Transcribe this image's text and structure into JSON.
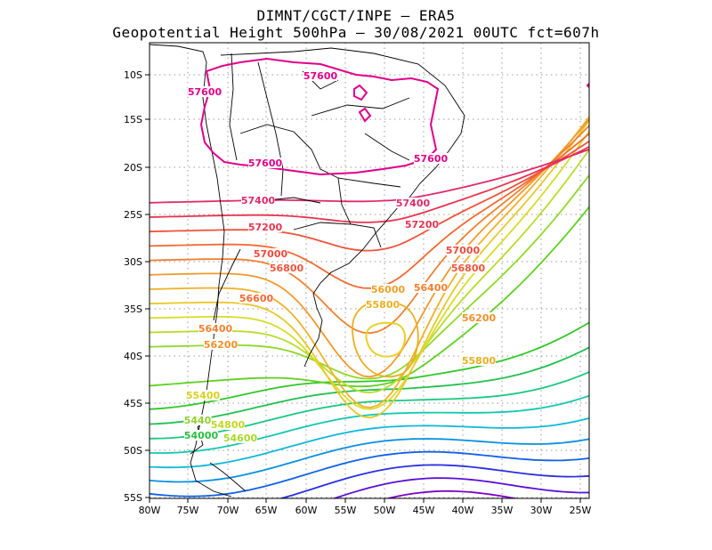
{
  "header": {
    "title_line1": "DIMNT/CGCT/INPE –  ERA5",
    "title_line2": "Geopotential Height 500hPa –  30/08/2021 00UTC fct=607h"
  },
  "axes": {
    "lat_ticks": [
      "10S",
      "15S",
      "20S",
      "25S",
      "30S",
      "35S",
      "40S",
      "45S",
      "50S",
      "55S"
    ],
    "lon_ticks": [
      "80W",
      "75W",
      "70W",
      "65W",
      "60W",
      "55W",
      "50W",
      "45W",
      "40W",
      "35W",
      "30W",
      "25W"
    ]
  },
  "contour_labels": [
    {
      "text": "57600",
      "color": "#e0008a"
    },
    {
      "text": "57600",
      "color": "#e0008a"
    },
    {
      "text": "57600",
      "color": "#e0008a"
    },
    {
      "text": "57600",
      "color": "#e0008a"
    },
    {
      "text": "57400",
      "color": "#e02a6a"
    },
    {
      "text": "57400",
      "color": "#e02a6a"
    },
    {
      "text": "57200",
      "color": "#e8344e"
    },
    {
      "text": "57200",
      "color": "#e8344e"
    },
    {
      "text": "57000",
      "color": "#ee4a3c"
    },
    {
      "text": "57000",
      "color": "#ee4a3c"
    },
    {
      "text": "56800",
      "color": "#f0533a"
    },
    {
      "text": "56800",
      "color": "#f0533a"
    },
    {
      "text": "56600",
      "color": "#f26a32"
    },
    {
      "text": "56400",
      "color": "#f08030"
    },
    {
      "text": "56400",
      "color": "#f08030"
    },
    {
      "text": "56200",
      "color": "#f0902a"
    },
    {
      "text": "56200",
      "color": "#f0902a"
    },
    {
      "text": "56000",
      "color": "#f0a028"
    },
    {
      "text": "55800",
      "color": "#e8b020"
    },
    {
      "text": "55800",
      "color": "#e8b020"
    },
    {
      "text": "55400",
      "color": "#d8d020"
    },
    {
      "text": "54600",
      "color": "#a8d828"
    },
    {
      "text": "54800",
      "color": "#c0d820"
    },
    {
      "text": "5440",
      "color": "#90d030"
    },
    {
      "text": "54000",
      "color": "#28c040"
    }
  ],
  "colors": {
    "frame": "#000000",
    "grid": "#9a9a9a",
    "coast": "#000000",
    "contour_scale": [
      "#7a00c8",
      "#5a10d8",
      "#2a30e0",
      "#1060e8",
      "#0890e0",
      "#10b8d8",
      "#10c8b0",
      "#18c880",
      "#20c050",
      "#30c828",
      "#60d020",
      "#90d828",
      "#b8dc28",
      "#d8dc28",
      "#e8c828",
      "#f0b028",
      "#f09a2c",
      "#f08030",
      "#f26a32",
      "#f0533a",
      "#e8344e",
      "#e02a6a",
      "#e0008a"
    ]
  }
}
